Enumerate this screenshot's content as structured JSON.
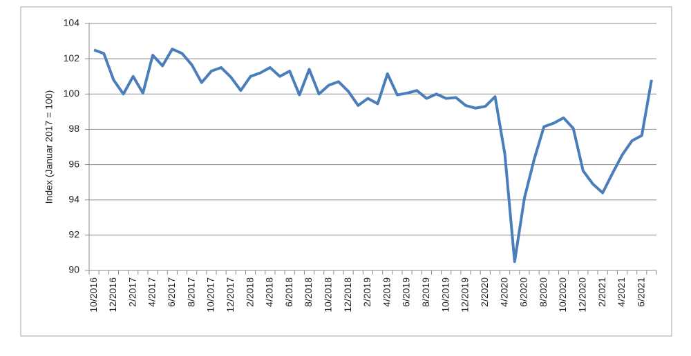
{
  "chart_data": {
    "type": "line",
    "y_label": "Index (Januar 2017 = 100)",
    "categories": [
      "10/2016",
      null,
      "12/2016",
      null,
      "2/2017",
      null,
      "4/2017",
      null,
      "6/2017",
      null,
      "8/2017",
      null,
      "10/2017",
      null,
      "12/2017",
      null,
      "2/2018",
      null,
      "4/2018",
      null,
      "6/2018",
      null,
      "8/2018",
      null,
      "10/2018",
      null,
      "12/2018",
      null,
      "2/2019",
      null,
      "4/2019",
      null,
      "6/2019",
      null,
      "8/2019",
      null,
      "10/2019",
      null,
      "12/2019",
      null,
      "2/2020",
      null,
      "4/2020",
      null,
      "6/2020",
      null,
      "8/2020",
      null,
      "10/2020",
      null,
      "12/2020",
      null,
      "2/2021",
      null,
      "4/2021",
      null,
      "6/2021",
      null
    ],
    "values": [
      102.5,
      102.3,
      100.8,
      100.0,
      101.0,
      100.05,
      102.2,
      101.6,
      102.55,
      102.3,
      101.65,
      100.65,
      101.3,
      101.5,
      100.95,
      100.2,
      101.0,
      101.2,
      101.5,
      101.0,
      101.3,
      99.95,
      101.4,
      100.0,
      100.5,
      100.7,
      100.15,
      99.35,
      99.75,
      99.45,
      101.15,
      99.95,
      100.05,
      100.2,
      99.75,
      100.0,
      99.75,
      99.8,
      99.35,
      99.2,
      99.3,
      99.85,
      96.6,
      90.5,
      94.1,
      96.3,
      98.15,
      98.35,
      98.65,
      98.05,
      95.65,
      94.9,
      94.4,
      95.5,
      96.55,
      97.35,
      97.65,
      100.8
    ],
    "color": "#4a7ebb",
    "ylim": [
      90,
      104
    ],
    "yticks": [
      90,
      92,
      94,
      96,
      98,
      100,
      102,
      104
    ],
    "grid": true
  }
}
